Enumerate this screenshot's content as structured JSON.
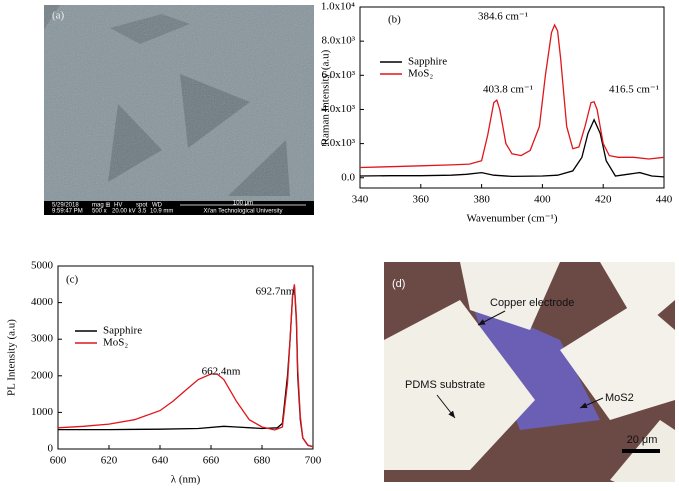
{
  "chart_data": [
    {
      "type": "line",
      "panel": "(b)",
      "xlabel": "Wavenumber (cm⁻¹)",
      "ylabel": "Raman Intensity (a.u)",
      "xlim": [
        340,
        440
      ],
      "xticks": [
        340,
        360,
        380,
        400,
        420,
        440
      ],
      "ylim": [
        -600,
        10000
      ],
      "yticks": [
        {
          "value": 0,
          "label": "0.0"
        },
        {
          "value": 2000,
          "label": "2.0x10³"
        },
        {
          "value": 4000,
          "label": "4.0x10³"
        },
        {
          "value": 6000,
          "label": "6.0x10³"
        },
        {
          "value": 8000,
          "label": "8.0x10³"
        },
        {
          "value": 10000,
          "label": "1.0x10⁴"
        }
      ],
      "legend": "upper left",
      "annotations": [
        "384.6 cm⁻¹",
        "403.8 cm⁻¹",
        "416.5 cm⁻¹"
      ],
      "series": [
        {
          "name": "Sapphire",
          "color": "#000000",
          "x": [
            340,
            350,
            360,
            370,
            375,
            380,
            384,
            390,
            400,
            405,
            410,
            413,
            415,
            417,
            419,
            421,
            424,
            428,
            432,
            436,
            440
          ],
          "values": [
            100,
            120,
            120,
            150,
            200,
            300,
            150,
            80,
            100,
            150,
            400,
            1200,
            2600,
            3400,
            2600,
            1000,
            100,
            200,
            300,
            100,
            50
          ]
        },
        {
          "name": "MoS₂",
          "color": "#e0161b",
          "x": [
            340,
            350,
            360,
            370,
            376,
            380,
            382,
            384,
            385,
            386,
            388,
            390,
            393,
            396,
            399,
            401,
            403,
            404,
            405,
            406,
            408,
            410,
            412,
            414,
            416,
            417,
            418,
            420,
            422,
            425,
            430,
            435,
            440
          ],
          "values": [
            600,
            650,
            700,
            750,
            800,
            1000,
            2500,
            4400,
            4550,
            4000,
            2000,
            1400,
            1300,
            1600,
            3000,
            6000,
            8500,
            8950,
            8600,
            7000,
            3000,
            1700,
            1800,
            3000,
            4400,
            4450,
            4000,
            2000,
            1300,
            1200,
            1200,
            1100,
            1200
          ]
        }
      ]
    },
    {
      "type": "line",
      "panel": "(c)",
      "xlabel": "λ (nm)",
      "ylabel": "PL Intensity (a.u)",
      "xlim": [
        600,
        700
      ],
      "xticks": [
        600,
        620,
        640,
        660,
        680,
        700
      ],
      "ylim": [
        0,
        5000
      ],
      "yticks": [
        0,
        1000,
        2000,
        3000,
        4000,
        5000
      ],
      "legend": "upper left",
      "annotations": [
        "662.4nm",
        "692.7nm"
      ],
      "series": [
        {
          "name": "Sapphire",
          "color": "#000000",
          "x": [
            600,
            620,
            640,
            655,
            665,
            670,
            680,
            686,
            688,
            690,
            691,
            692,
            692.7,
            693.5,
            694,
            695,
            696,
            698,
            700
          ],
          "values": [
            530,
            530,
            540,
            560,
            620,
            600,
            560,
            580,
            700,
            2000,
            3000,
            4200,
            4450,
            3500,
            2000,
            800,
            300,
            100,
            60
          ]
        },
        {
          "name": "MoS₂",
          "color": "#e0161b",
          "x": [
            600,
            610,
            620,
            630,
            640,
            645,
            650,
            655,
            660,
            662.4,
            665,
            670,
            675,
            680,
            685,
            688,
            690,
            691,
            692,
            692.7,
            693.5,
            694,
            695,
            696,
            698,
            700
          ],
          "values": [
            580,
            620,
            680,
            800,
            1050,
            1300,
            1600,
            1900,
            2050,
            2050,
            1900,
            1300,
            800,
            600,
            520,
            600,
            1800,
            3000,
            4200,
            4500,
            3600,
            2200,
            900,
            300,
            100,
            60
          ]
        }
      ]
    }
  ],
  "images": [
    {
      "panel": "(a)",
      "info_bar": [
        "5/29/2018",
        "9:59:47 PM",
        "mag ⊞",
        "500 x",
        "HV",
        "20.00 kV",
        "spot",
        "3.5",
        "WD",
        "10.9 mm"
      ],
      "scale": "100 μm",
      "institution": "Xi'an Technological University"
    },
    {
      "panel": "(d)",
      "labels": [
        "Copper electrode",
        "PDMS substrate",
        "MoS2"
      ],
      "scale": "20 μm"
    }
  ]
}
